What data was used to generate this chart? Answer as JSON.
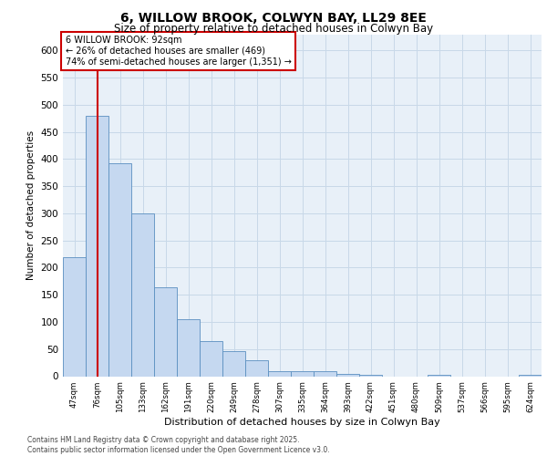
{
  "title_line1": "6, WILLOW BROOK, COLWYN BAY, LL29 8EE",
  "title_line2": "Size of property relative to detached houses in Colwyn Bay",
  "xlabel": "Distribution of detached houses by size in Colwyn Bay",
  "ylabel": "Number of detached properties",
  "categories": [
    "47sqm",
    "76sqm",
    "105sqm",
    "133sqm",
    "162sqm",
    "191sqm",
    "220sqm",
    "249sqm",
    "278sqm",
    "307sqm",
    "335sqm",
    "364sqm",
    "393sqm",
    "422sqm",
    "451sqm",
    "480sqm",
    "509sqm",
    "537sqm",
    "566sqm",
    "595sqm",
    "624sqm"
  ],
  "values": [
    220,
    480,
    393,
    300,
    163,
    105,
    65,
    47,
    30,
    10,
    10,
    10,
    5,
    3,
    0,
    0,
    3,
    0,
    0,
    0,
    3
  ],
  "bar_color": "#c5d8f0",
  "bar_edge_color": "#5a8fc0",
  "grid_color": "#c8d8e8",
  "background_color": "#e8f0f8",
  "annotation_box_color": "#ffffff",
  "annotation_border_color": "#cc0000",
  "vertical_line_x": 1,
  "vertical_line_color": "#cc0000",
  "annotation_text_line1": "6 WILLOW BROOK: 92sqm",
  "annotation_text_line2": "← 26% of detached houses are smaller (469)",
  "annotation_text_line3": "74% of semi-detached houses are larger (1,351) →",
  "footer_line1": "Contains HM Land Registry data © Crown copyright and database right 2025.",
  "footer_line2": "Contains public sector information licensed under the Open Government Licence v3.0.",
  "ylim": [
    0,
    630
  ],
  "yticks": [
    0,
    50,
    100,
    150,
    200,
    250,
    300,
    350,
    400,
    450,
    500,
    550,
    600
  ]
}
